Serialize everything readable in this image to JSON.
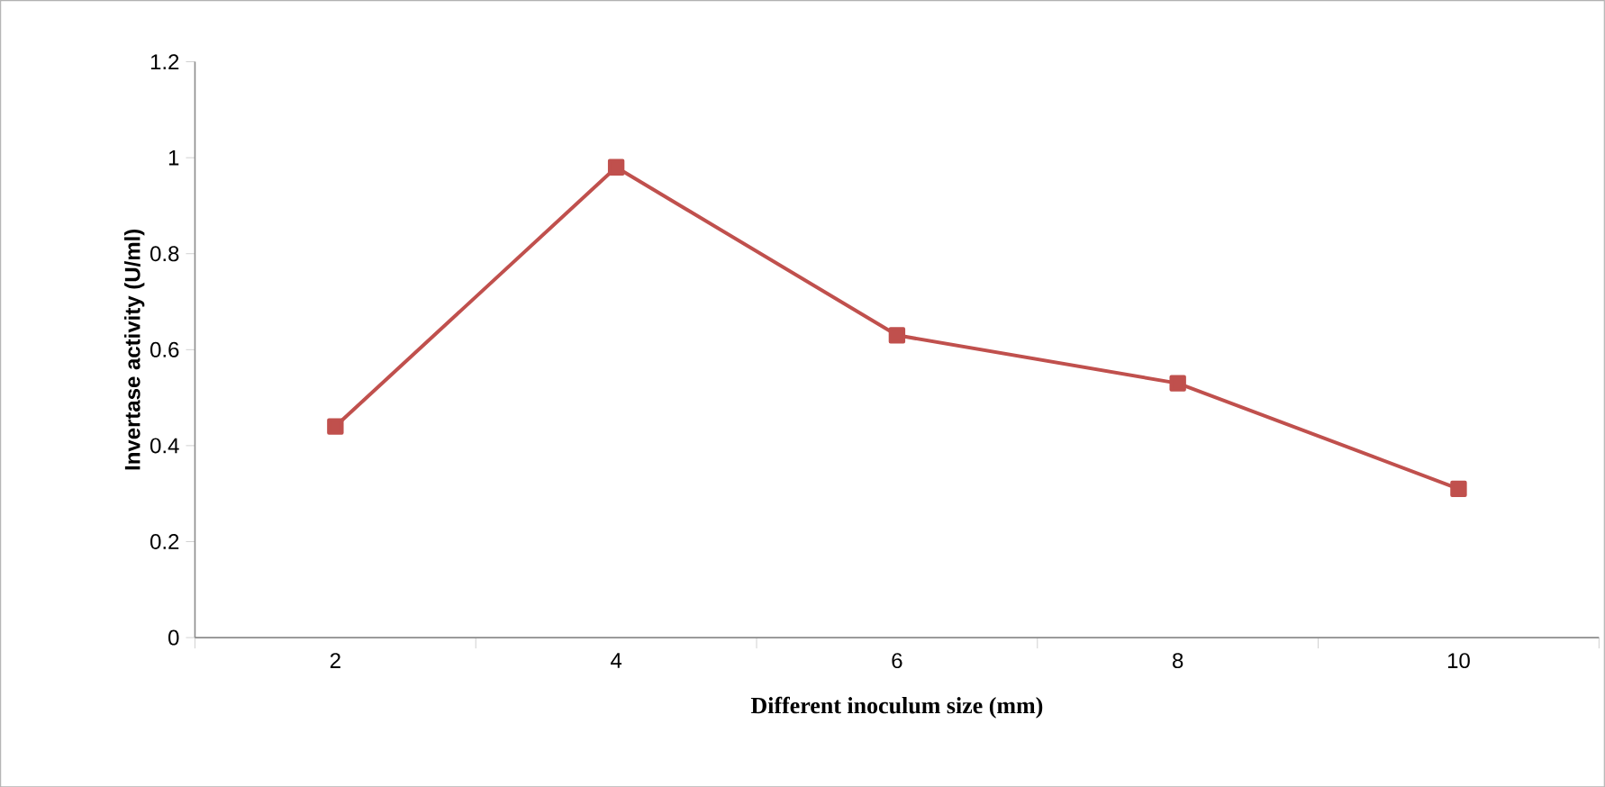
{
  "chart_data": {
    "type": "line",
    "xlabel": "Different inoculum size (mm)",
    "ylabel": "Invertase activity (U/ml)",
    "categories": [
      "2",
      "4",
      "6",
      "8",
      "10"
    ],
    "series": [
      {
        "color": "#c0504d",
        "values": [
          0.44,
          0.98,
          0.63,
          0.53,
          0.31
        ]
      }
    ],
    "ylim": [
      0,
      1.2
    ],
    "yticks": [
      0,
      0.2,
      0.4,
      0.6,
      0.8,
      1,
      1.2
    ],
    "grid": false,
    "marker": "square",
    "line_style": "solid"
  }
}
